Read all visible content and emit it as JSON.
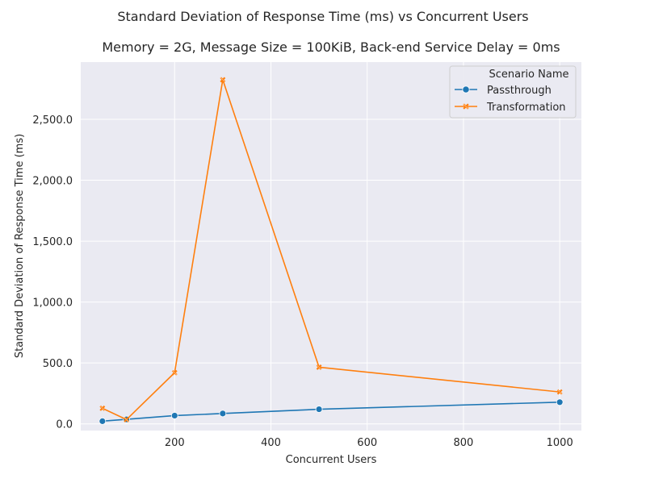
{
  "chart_data": {
    "type": "line",
    "suptitle": "Standard Deviation of Response Time (ms) vs Concurrent Users",
    "title": "Memory = 2G, Message Size = 100KiB, Back-end Service Delay = 0ms",
    "xlabel": "Concurrent Users",
    "ylabel": "Standard Deviation of Response Time (ms)",
    "xlim": [
      5,
      1045
    ],
    "ylim": [
      -55,
      2970
    ],
    "xticks": [
      200,
      400,
      600,
      800,
      1000
    ],
    "yticks": [
      0,
      500,
      1000,
      1500,
      2000,
      2500
    ],
    "ytick_labels": [
      "0.0",
      "500.0",
      "1,000.0",
      "1,500.0",
      "2,000.0",
      "2,500.0"
    ],
    "grid": true,
    "legend": {
      "title": "Scenario Name",
      "placement": "top-right"
    },
    "series": [
      {
        "name": "Passthrough",
        "color": "#1f77b4",
        "marker": "circle",
        "x": [
          50,
          100,
          200,
          300,
          500,
          1000
        ],
        "y": [
          22,
          37,
          68,
          85,
          120,
          178
        ]
      },
      {
        "name": "Transformation",
        "color": "#ff7f0e",
        "marker": "x",
        "x": [
          50,
          100,
          200,
          300,
          500,
          1000
        ],
        "y": [
          128,
          35,
          420,
          2825,
          465,
          262
        ]
      }
    ]
  }
}
